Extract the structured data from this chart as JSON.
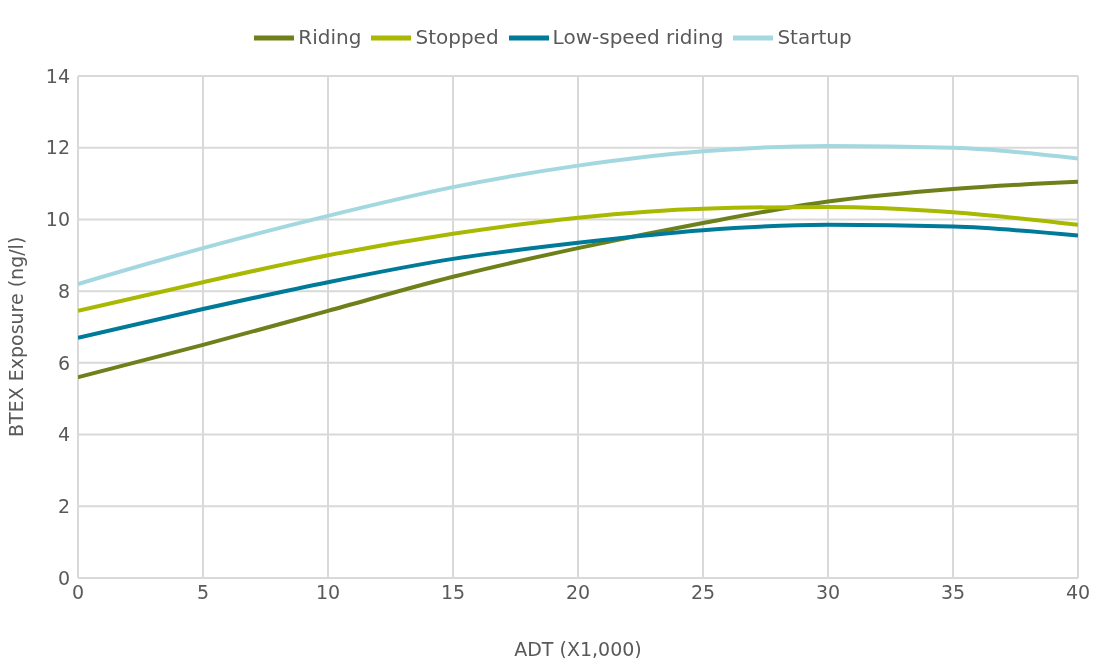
{
  "chart_data": {
    "type": "line",
    "xlabel": "ADT (X1,000)",
    "ylabel": "BTEX Exposure (ng/l)",
    "x": [
      0,
      5,
      10,
      15,
      20,
      25,
      30,
      35,
      40
    ],
    "series": [
      {
        "name": "Riding",
        "color": "#6e801a",
        "values": [
          5.6,
          6.5,
          7.45,
          8.4,
          9.2,
          9.9,
          10.5,
          10.85,
          11.05
        ]
      },
      {
        "name": "Stopped",
        "color": "#a9b800",
        "values": [
          7.45,
          8.25,
          9.0,
          9.6,
          10.05,
          10.3,
          10.35,
          10.2,
          9.85
        ]
      },
      {
        "name": "Low-speed riding",
        "color": "#007a99",
        "values": [
          6.7,
          7.5,
          8.25,
          8.9,
          9.35,
          9.7,
          9.85,
          9.8,
          9.55
        ]
      },
      {
        "name": "Startup",
        "color": "#a3d8e0",
        "values": [
          8.2,
          9.2,
          10.1,
          10.9,
          11.5,
          11.9,
          12.05,
          12.0,
          11.7
        ]
      }
    ],
    "xlim": [
      0,
      40
    ],
    "xticks": [
      0,
      5,
      10,
      15,
      20,
      25,
      30,
      35,
      40
    ],
    "ylim": [
      0,
      14
    ],
    "yticks": [
      0,
      2,
      4,
      6,
      8,
      10,
      12,
      14
    ],
    "grid": true,
    "legend": "top",
    "marker": "none",
    "line_style": "solid"
  }
}
